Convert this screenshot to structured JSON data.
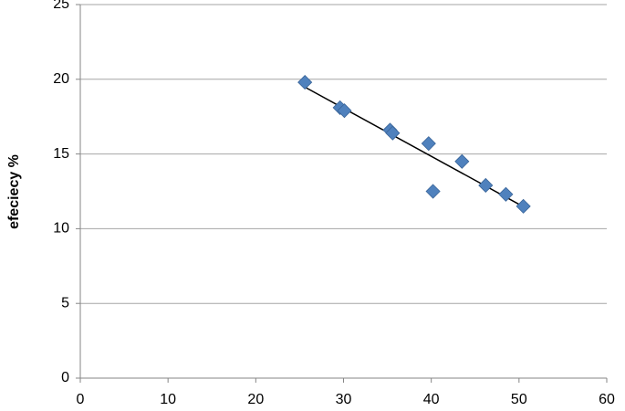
{
  "chart_data": {
    "type": "scatter",
    "y_label": "efeciecy %",
    "x": [
      25.6,
      29.6,
      30.1,
      35.3,
      35.6,
      39.7,
      40.2,
      43.5,
      46.2,
      48.5,
      50.5
    ],
    "values": [
      19.8,
      18.1,
      17.9,
      16.6,
      16.4,
      15.7,
      12.5,
      14.5,
      12.9,
      12.3,
      11.5
    ],
    "color": "#4f81bd",
    "trendline": "linear",
    "trendline_color": "#000000",
    "xlim": [
      0,
      60
    ],
    "xticks": [
      0,
      10,
      20,
      30,
      40,
      50,
      60
    ],
    "ylim": [
      0,
      25
    ],
    "yticks": [
      0,
      5,
      10,
      15,
      20,
      25
    ],
    "grid": true
  }
}
